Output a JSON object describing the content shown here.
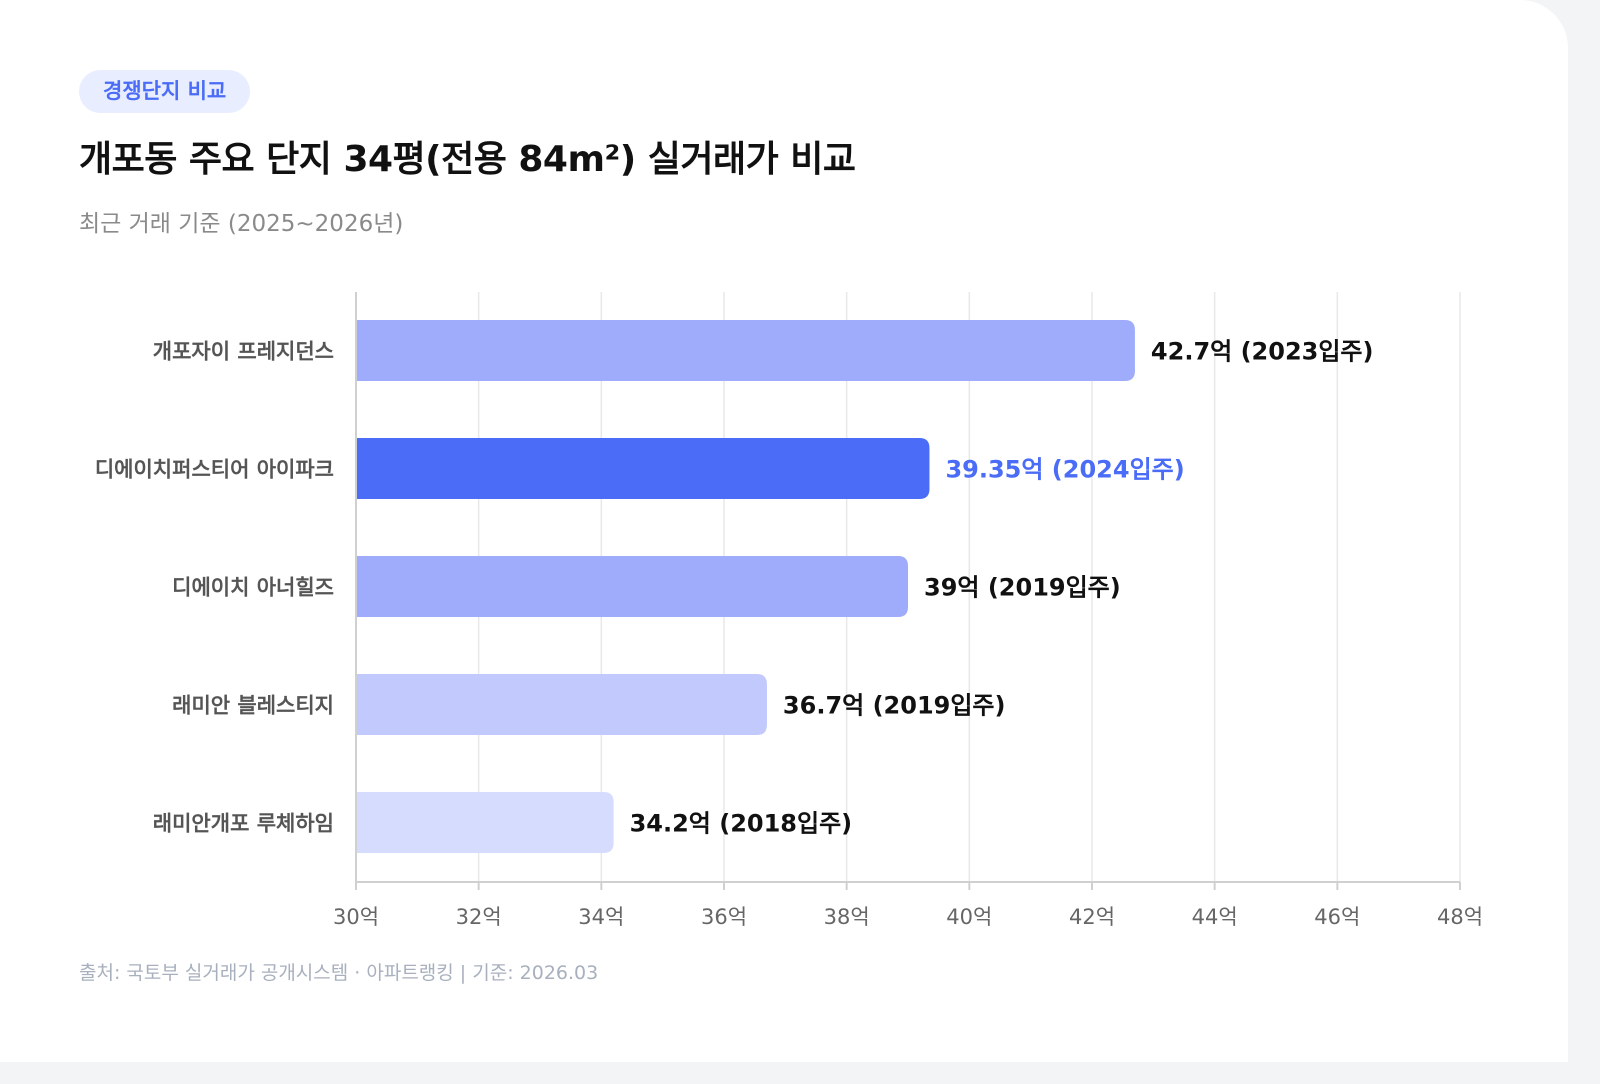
{
  "badge": "경쟁단지 비교",
  "title": "개포동 주요 단지 34평(전용 84m²) 실거래가 비교",
  "subtitle": "최근 거래 기준 (2025~2026년)",
  "source": "출처: 국토부 실거래가 공개시스템 · 아파트랭킹 | 기준: 2026.03",
  "colors": {
    "highlight": "#4a6cf7",
    "highlight_label": "#4a6cf7",
    "label": "#111111",
    "category": "#555555",
    "grid": "#e8e8e8",
    "axis": "#d0d0d0",
    "tick": "#666666"
  },
  "chart_data": {
    "type": "bar",
    "orientation": "horizontal",
    "categories": [
      "개포자이 프레지던스",
      "디에이치퍼스티어 아이파크",
      "디에이치 아너힐즈",
      "래미안 블레스티지",
      "래미안개포 루체하임"
    ],
    "values": [
      42.7,
      39.35,
      39,
      36.7,
      34.2
    ],
    "value_labels": [
      "42.7억 (2023입주)",
      "39.35억 (2024입주)",
      "39억 (2019입주)",
      "36.7억 (2019입주)",
      "34.2억 (2018입주)"
    ],
    "bar_colors": [
      "#9eacfb",
      "#4a6cf7",
      "#9eacfb",
      "#c1c9fd",
      "#d6dcfe"
    ],
    "highlight_index": 1,
    "xlim": [
      30,
      48
    ],
    "xticks": [
      30,
      32,
      34,
      36,
      38,
      40,
      42,
      44,
      46,
      48
    ],
    "xtick_labels": [
      "30억",
      "32억",
      "34억",
      "36억",
      "38억",
      "40억",
      "42억",
      "44억",
      "46억",
      "48억"
    ],
    "grid": true,
    "legend": "none"
  }
}
